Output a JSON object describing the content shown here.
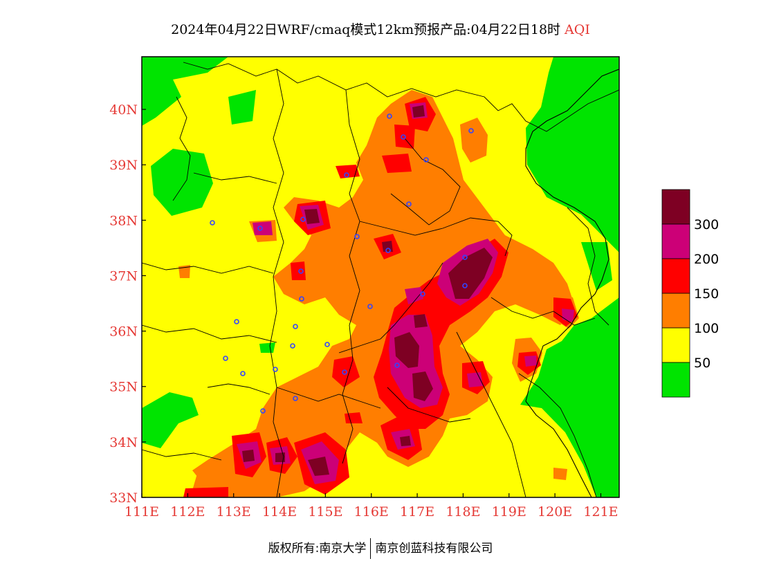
{
  "title": {
    "main": "2024年04月22日WRF/cmaq模式12km预报产品:04月22日18时",
    "variable": "AQI"
  },
  "map": {
    "lon_range": [
      111,
      121.4
    ],
    "lat_range": [
      33,
      40.95
    ],
    "x_ticks": [
      "111E",
      "112E",
      "113E",
      "114E",
      "115E",
      "116E",
      "117E",
      "118E",
      "119E",
      "120E",
      "121E"
    ],
    "y_ticks": [
      "33N",
      "34N",
      "35N",
      "36N",
      "37N",
      "38N",
      "39N",
      "40N"
    ],
    "colors": {
      "green": "#00e400",
      "yellow": "#ffff00",
      "orange": "#ff7e00",
      "red": "#ff0000",
      "purple": "#cc0077",
      "maroon": "#7e0023"
    }
  },
  "legend": {
    "colors": [
      "#7e0023",
      "#cc0077",
      "#ff0000",
      "#ff7e00",
      "#ffff00",
      "#00e400"
    ],
    "labels": [
      "300",
      "200",
      "150",
      "100",
      "50"
    ]
  },
  "footer": {
    "copyright": "版权所有:南京大学",
    "company": "南京创蓝科技有限公司"
  }
}
